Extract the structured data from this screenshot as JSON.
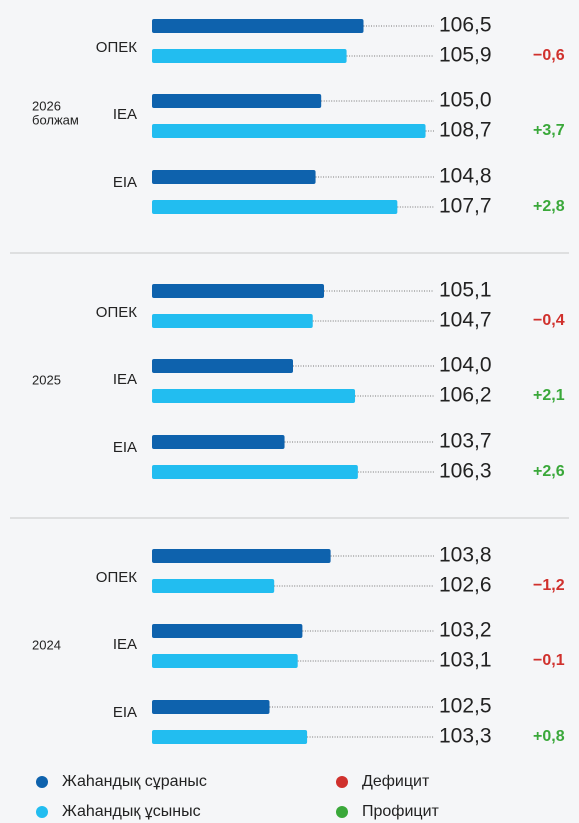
{
  "chart_data": {
    "type": "grouped-hbar",
    "series": [
      {
        "name": "Жаһандық сұраныс",
        "color": "#0e62ad"
      },
      {
        "name": "Жаһандық ұсыныс",
        "color": "#22bdf0"
      }
    ],
    "balance_legend": [
      {
        "name": "Дефицит",
        "color": "#d0312d"
      },
      {
        "name": "Профицит",
        "color": "#3aa83a"
      }
    ],
    "groups": [
      {
        "label": "2026",
        "sublabel": "болжам",
        "xlim": [
          99,
          109
        ],
        "categories": [
          "ОПЕК",
          "IEA",
          "EIA"
        ],
        "series": [
          {
            "values": [
              106.5,
              105.0,
              104.8
            ],
            "value_labels": [
              "106,5",
              "105,0",
              "104,8"
            ]
          },
          {
            "values": [
              105.9,
              108.7,
              107.7
            ],
            "value_labels": [
              "105,9",
              "108,7",
              "107,7"
            ]
          }
        ],
        "balance": [
          -0.6,
          3.7,
          2.8
        ],
        "balance_labels": [
          "−0,6",
          "+3,7",
          "+2,8"
        ]
      },
      {
        "label": "2025",
        "xlim": [
          99,
          109
        ],
        "categories": [
          "ОПЕК",
          "IEA",
          "EIA"
        ],
        "series": [
          {
            "values": [
              105.1,
              104.0,
              103.7
            ],
            "value_labels": [
              "105,1",
              "104,0",
              "103,7"
            ]
          },
          {
            "values": [
              104.7,
              106.2,
              106.3
            ],
            "value_labels": [
              "104,7",
              "106,2",
              "106,3"
            ]
          }
        ],
        "balance": [
          -0.4,
          2.1,
          2.6
        ],
        "balance_labels": [
          "−0,4",
          "+2,1",
          "+2,6"
        ]
      },
      {
        "label": "2024",
        "xlim": [
          100,
          106
        ],
        "categories": [
          "ОПЕК",
          "IEA",
          "EIA"
        ],
        "series": [
          {
            "values": [
              103.8,
              103.2,
              102.5
            ],
            "value_labels": [
              "103,8",
              "103,2",
              "102,5"
            ]
          },
          {
            "values": [
              102.6,
              103.1,
              103.3
            ],
            "value_labels": [
              "102,6",
              "103,1",
              "103,3"
            ]
          }
        ],
        "balance": [
          -1.2,
          -0.1,
          0.8
        ],
        "balance_labels": [
          "−1,2",
          "−0,1",
          "+0,8"
        ]
      }
    ]
  }
}
